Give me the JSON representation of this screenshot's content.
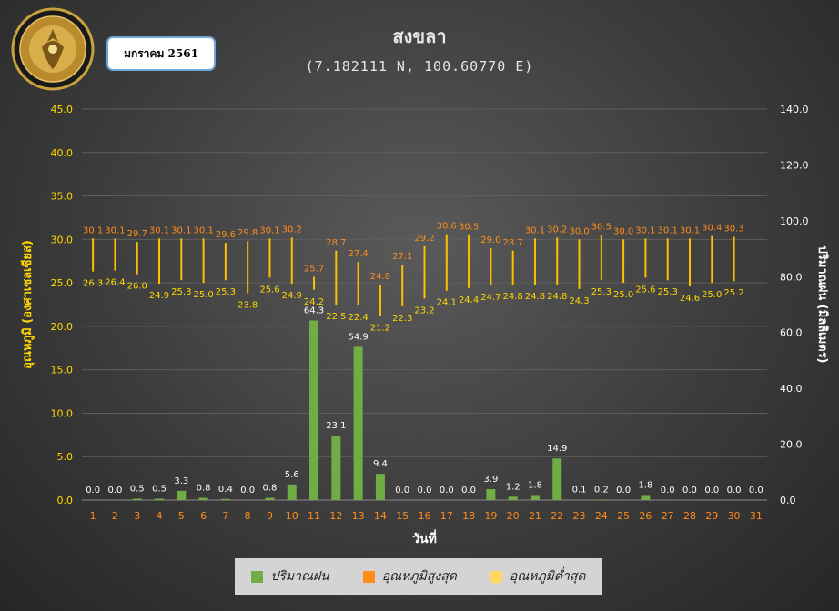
{
  "header": {
    "title": "สงขลา",
    "subtitle": "(7.182111 N, 100.60770 E)",
    "month": "มกราคม 2561",
    "logo_text": "กรมอุตุนิยมวิทยา",
    "logo_text_en": "METEOROLOGICAL DEPARTMENT"
  },
  "legend": {
    "rain": "ปริมาณฝน",
    "tmax": "อุณหภูมิสูงสุด",
    "tmin": "อุณหภูมิต่ำสุด"
  },
  "colors": {
    "rain": "#70ad47",
    "tmax": "#ff8c1a",
    "tmin": "#ffd966",
    "range_line": "#ffc000",
    "rain_label": "#ffffff",
    "tmax_label": "#ff8c1a",
    "tmin_label": "#ffd700",
    "left_axis": "#ffd700",
    "right_axis": "#ffffff",
    "x_ticks": "#ff8c1a"
  },
  "chart_data": {
    "type": "bar",
    "xlabel": "วันที่",
    "ylabel_left": "อุณหภูมิ (องศาเซลเซียส)",
    "ylabel_right": "ปริมาณฝน (มิลลิเมตร)",
    "ylim_left": [
      0,
      45
    ],
    "yticks_left": [
      "0.0",
      "5.0",
      "10.0",
      "15.0",
      "20.0",
      "25.0",
      "30.0",
      "35.0",
      "40.0",
      "45.0"
    ],
    "ylim_right": [
      0,
      140
    ],
    "yticks_right": [
      "0.0",
      "20.0",
      "40.0",
      "60.0",
      "80.0",
      "100.0",
      "120.0",
      "140.0"
    ],
    "categories": [
      "1",
      "2",
      "3",
      "4",
      "5",
      "6",
      "7",
      "8",
      "9",
      "10",
      "11",
      "12",
      "13",
      "14",
      "15",
      "16",
      "17",
      "18",
      "19",
      "20",
      "21",
      "22",
      "23",
      "24",
      "25",
      "26",
      "27",
      "28",
      "29",
      "30",
      "31"
    ],
    "rain": [
      0.0,
      0.0,
      0.5,
      0.5,
      3.3,
      0.8,
      0.4,
      0.0,
      0.8,
      5.6,
      64.3,
      23.1,
      54.9,
      9.4,
      0.0,
      0.0,
      0.0,
      0.0,
      3.9,
      1.2,
      1.8,
      14.9,
      0.1,
      0.2,
      0.0,
      1.8,
      0.0,
      0.0,
      0.0,
      0.0,
      0.0
    ],
    "tmax": [
      30.1,
      30.1,
      29.7,
      30.1,
      30.1,
      30.1,
      29.6,
      29.8,
      30.1,
      30.2,
      25.7,
      28.7,
      27.4,
      24.8,
      27.1,
      29.2,
      30.6,
      30.5,
      29.0,
      28.7,
      30.1,
      30.2,
      30.0,
      30.5,
      30.0,
      30.1,
      30.1,
      30.1,
      30.4,
      30.3,
      null
    ],
    "tmin": [
      26.3,
      26.4,
      26.0,
      24.9,
      25.3,
      25.0,
      25.3,
      23.8,
      25.6,
      24.9,
      24.2,
      22.5,
      22.4,
      21.2,
      22.3,
      23.2,
      24.1,
      24.4,
      24.7,
      24.8,
      24.8,
      24.8,
      24.3,
      25.3,
      25.0,
      25.6,
      25.3,
      24.6,
      25.0,
      25.2,
      null
    ]
  }
}
